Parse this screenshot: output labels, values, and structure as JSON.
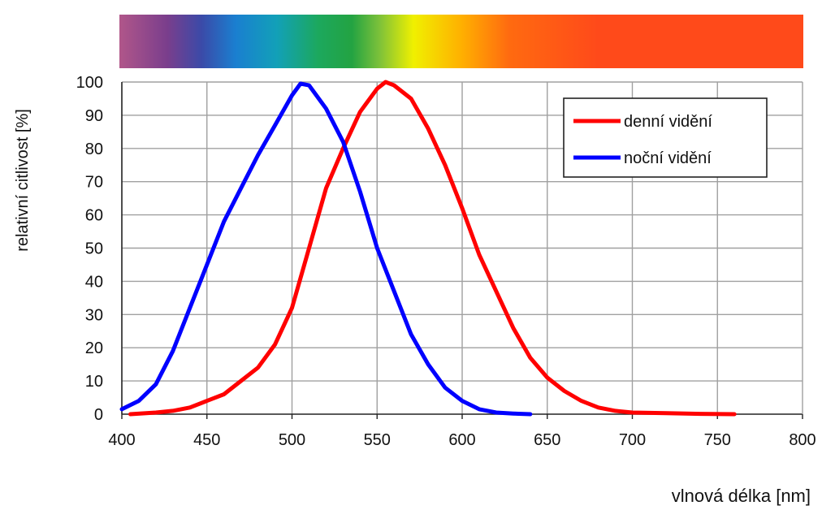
{
  "chart_data": {
    "type": "line",
    "title": "",
    "xlabel": "vlnová délka [nm]",
    "ylabel": "relativní citlivost [%]",
    "xlim": [
      400,
      800
    ],
    "ylim": [
      0,
      100
    ],
    "xticks": [
      400,
      450,
      500,
      550,
      600,
      650,
      700,
      750,
      800
    ],
    "yticks": [
      0,
      10,
      20,
      30,
      40,
      50,
      60,
      70,
      80,
      90,
      100
    ],
    "grid": true,
    "legend_position": "top-right",
    "spectrum_bar": true,
    "series": [
      {
        "name": "denní vidění",
        "color": "#ff0000",
        "points": [
          [
            405,
            0
          ],
          [
            420,
            0.5
          ],
          [
            430,
            1
          ],
          [
            440,
            2
          ],
          [
            450,
            4
          ],
          [
            460,
            6
          ],
          [
            470,
            10
          ],
          [
            480,
            14
          ],
          [
            490,
            21
          ],
          [
            500,
            32
          ],
          [
            510,
            50
          ],
          [
            520,
            68
          ],
          [
            530,
            80
          ],
          [
            540,
            91
          ],
          [
            550,
            98
          ],
          [
            555,
            100
          ],
          [
            560,
            99
          ],
          [
            570,
            95
          ],
          [
            580,
            86
          ],
          [
            590,
            75
          ],
          [
            600,
            62
          ],
          [
            610,
            48
          ],
          [
            620,
            37
          ],
          [
            630,
            26
          ],
          [
            640,
            17
          ],
          [
            650,
            11
          ],
          [
            660,
            7
          ],
          [
            670,
            4
          ],
          [
            680,
            2
          ],
          [
            690,
            1
          ],
          [
            700,
            0.5
          ],
          [
            720,
            0.3
          ],
          [
            740,
            0.1
          ],
          [
            760,
            0
          ]
        ]
      },
      {
        "name": "noční vidění",
        "color": "#0000ff",
        "points": [
          [
            400,
            1.5
          ],
          [
            410,
            4
          ],
          [
            420,
            9
          ],
          [
            430,
            19
          ],
          [
            440,
            32
          ],
          [
            450,
            45
          ],
          [
            460,
            58
          ],
          [
            470,
            68
          ],
          [
            480,
            78
          ],
          [
            490,
            87
          ],
          [
            500,
            96
          ],
          [
            505,
            99.5
          ],
          [
            510,
            99
          ],
          [
            520,
            92
          ],
          [
            530,
            82
          ],
          [
            540,
            67
          ],
          [
            550,
            50
          ],
          [
            560,
            37
          ],
          [
            570,
            24
          ],
          [
            580,
            15
          ],
          [
            590,
            8
          ],
          [
            600,
            4
          ],
          [
            610,
            1.5
          ],
          [
            620,
            0.5
          ],
          [
            630,
            0.2
          ],
          [
            640,
            0
          ]
        ]
      }
    ]
  }
}
